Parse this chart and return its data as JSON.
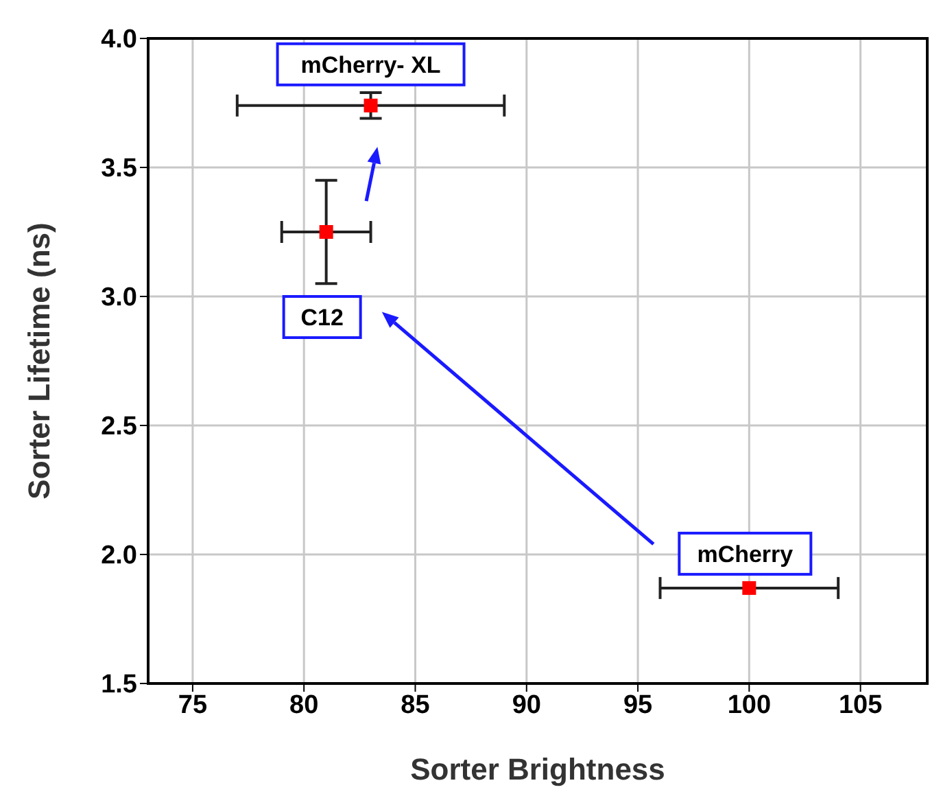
{
  "chart_data": {
    "type": "scatter",
    "xlabel": "Sorter Brightness",
    "ylabel": "Sorter Lifetime (ns)",
    "x": [
      83,
      81,
      100
    ],
    "values": [
      3.74,
      3.25,
      1.87
    ],
    "color": "#ff0000",
    "marker": "square",
    "errors": [
      0.05,
      0.2,
      null
    ],
    "xerrors": [
      6,
      2,
      4
    ],
    "xlim": [
      73,
      108
    ],
    "xticks": [
      75,
      80,
      85,
      90,
      95,
      100,
      105
    ],
    "ylim": [
      1.5,
      4.0
    ],
    "yticks": [
      1.5,
      {
        "value": 2,
        "label": "2.0"
      },
      2.5,
      {
        "value": 3,
        "label": "3.0"
      },
      3.5,
      {
        "value": 4,
        "label": "4.0"
      }
    ],
    "grid": true,
    "annotations": [
      {
        "text": "mCherry- XL",
        "x": 83,
        "y": 3.74
      },
      "C12",
      {
        "text": "mCherry",
        "x": 100,
        "y": 1.87
      }
    ]
  }
}
